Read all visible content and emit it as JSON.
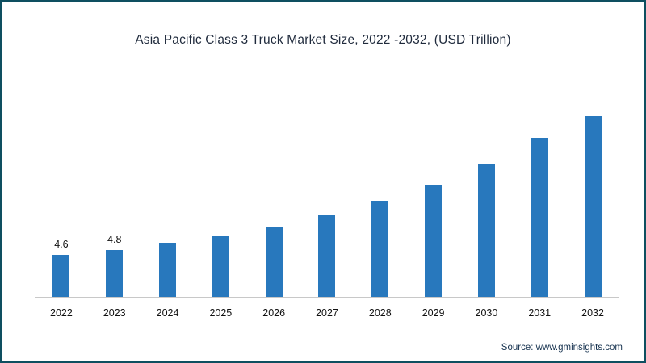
{
  "title": "Asia Pacific Class 3 Truck Market Size, 2022 -2032, (USD Trillion)",
  "source": "Source: www.gminsights.com",
  "colors": {
    "bar": "#2878bd",
    "frame": "#0e4f60",
    "baseline": "#c8c8c8",
    "title_text": "#1f2a3c"
  },
  "chart_data": {
    "type": "bar",
    "title": "Asia Pacific Class 3 Truck Market Size, 2022 -2032, (USD Trillion)",
    "categories": [
      "2022",
      "2023",
      "2024",
      "2025",
      "2026",
      "2027",
      "2028",
      "2029",
      "2030",
      "2031",
      "2032"
    ],
    "values": [
      4.6,
      4.8,
      5.1,
      5.4,
      5.8,
      6.3,
      6.9,
      7.6,
      8.5,
      9.6,
      10.9
    ],
    "data_labels": [
      "4.6",
      "4.8",
      "",
      "",
      "",
      "",
      "",
      "",
      "",
      "",
      ""
    ],
    "xlabel": "",
    "ylabel": "",
    "ylim": [
      2.8,
      11.2
    ],
    "grid": false,
    "legend": false,
    "bar_color": "#2878bd",
    "annotation": "Source: www.gminsights.com"
  }
}
